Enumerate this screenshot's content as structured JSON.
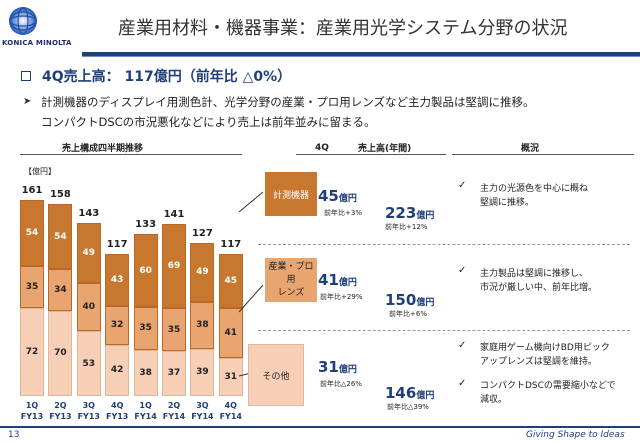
{
  "logo": {
    "text": "KONICA MINOLTA"
  },
  "title": "産業用材料・機器事業：産業用光学システム分野の状況",
  "headline": "4Q売上高：  117億円（前年比 △0%）",
  "body_lines": [
    "計測機器のディスプレイ用測色計、光学分野の産業・プロ用レンズなど主力製品は堅調に推移。",
    "コンパクトDSCの市況悪化などにより売上は前年並みに留まる。"
  ],
  "column_headers": {
    "chart": "売上構成四半期推移",
    "q4": "4Q",
    "annual": "売上高(年間)",
    "overview": "概況"
  },
  "unit_label": "【億円】",
  "colors": {
    "dark": "#c8772e",
    "mid": "#e8a56f",
    "light": "#f7cfb6",
    "navy": "#1f3f7a"
  },
  "chart_data": {
    "type": "bar",
    "stacked": true,
    "unit": "億円",
    "categories": [
      "1Q FY13",
      "2Q FY13",
      "3Q FY13",
      "4Q FY13",
      "1Q FY14",
      "2Q FY14",
      "3Q FY14",
      "4Q FY14"
    ],
    "category_lines": [
      [
        "1Q",
        "FY13"
      ],
      [
        "2Q",
        "FY13"
      ],
      [
        "3Q",
        "FY13"
      ],
      [
        "4Q",
        "FY13"
      ],
      [
        "1Q",
        "FY14"
      ],
      [
        "2Q",
        "FY14"
      ],
      [
        "3Q",
        "FY14"
      ],
      [
        "4Q",
        "FY14"
      ]
    ],
    "totals": [
      161,
      158,
      143,
      117,
      133,
      141,
      127,
      117
    ],
    "series": [
      {
        "name": "その他",
        "values": [
          72,
          70,
          53,
          42,
          38,
          37,
          39,
          31
        ]
      },
      {
        "name": "産業・プロ用レンズ",
        "values": [
          35,
          34,
          40,
          32,
          35,
          35,
          38,
          41
        ]
      },
      {
        "name": "計測機器",
        "values": [
          54,
          54,
          49,
          43,
          60,
          69,
          49,
          45
        ]
      }
    ],
    "ylim": [
      0,
      161
    ]
  },
  "segments": [
    {
      "name": "計測機器",
      "q4_value": "45",
      "q4_unit": "億円",
      "q4_yoy": "前年比+3%",
      "annual_value": "223",
      "annual_unit": "億円",
      "annual_yoy": "前年比+12%",
      "notes": [
        "主力の光源色を中心に概ね",
        "堅調に推移。"
      ]
    },
    {
      "name": "産業・プロ用\nレンズ",
      "q4_value": "41",
      "q4_unit": "億円",
      "q4_yoy": "前年比+29%",
      "annual_value": "150",
      "annual_unit": "億円",
      "annual_yoy": "前年比+6%",
      "notes": [
        "主力製品は堅調に推移し、",
        "市況が厳しい中、前年比増。"
      ]
    },
    {
      "name": "その他",
      "q4_value": "31",
      "q4_unit": "億円",
      "q4_yoy": "前年比△26%",
      "annual_value": "146",
      "annual_unit": "億円",
      "annual_yoy": "前年比△39%",
      "notes": [
        "家庭用ゲーム機向けBD用ピック",
        "アップレンズは堅調を維持。"
      ],
      "notes2": [
        "コンパクトDSCの需要縮小などで",
        "減収。"
      ]
    }
  ],
  "footer": {
    "page": "13",
    "tagline": "Giving Shape to Ideas"
  }
}
